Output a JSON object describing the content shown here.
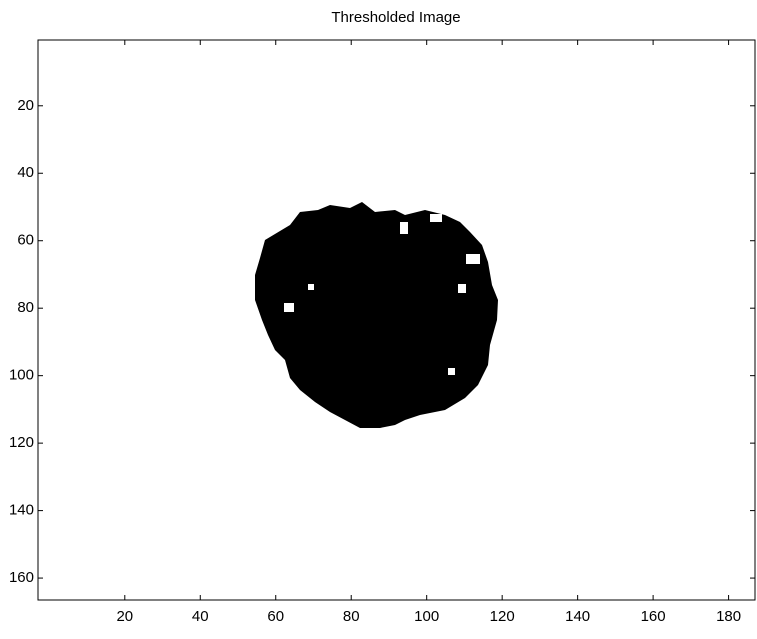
{
  "chart_data": {
    "type": "image",
    "title": "Thresholded Image",
    "xlim": [
      -3,
      187
    ],
    "ylim": [
      166.5,
      0.5
    ],
    "xticks": [
      20,
      40,
      60,
      80,
      100,
      120,
      140,
      160,
      180
    ],
    "yticks": [
      20,
      40,
      60,
      80,
      100,
      120,
      140,
      160
    ]
  }
}
